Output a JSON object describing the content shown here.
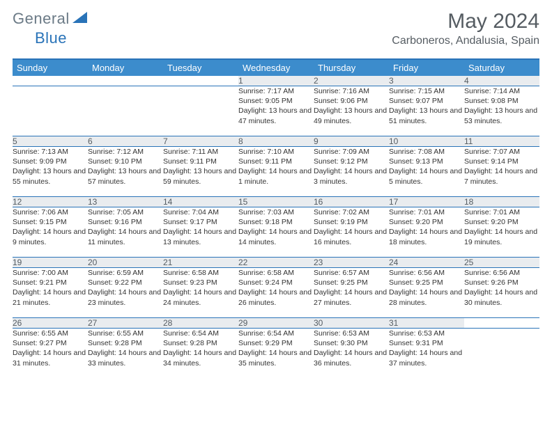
{
  "logo": {
    "general": "General",
    "blue": "Blue"
  },
  "title": "May 2024",
  "location": "Carboneros, Andalusia, Spain",
  "columns": [
    "Sunday",
    "Monday",
    "Tuesday",
    "Wednesday",
    "Thursday",
    "Friday",
    "Saturday"
  ],
  "colors": {
    "header_bg": "#3c8ccc",
    "border": "#2973b8",
    "daynum_bg": "#e9ecef",
    "text": "#333333",
    "title_text": "#555c62"
  },
  "weeks": [
    {
      "nums": [
        "",
        "",
        "",
        "1",
        "2",
        "3",
        "4"
      ],
      "cells": [
        "",
        "",
        "",
        "Sunrise: 7:17 AM\nSunset: 9:05 PM\nDaylight: 13 hours and 47 minutes.",
        "Sunrise: 7:16 AM\nSunset: 9:06 PM\nDaylight: 13 hours and 49 minutes.",
        "Sunrise: 7:15 AM\nSunset: 9:07 PM\nDaylight: 13 hours and 51 minutes.",
        "Sunrise: 7:14 AM\nSunset: 9:08 PM\nDaylight: 13 hours and 53 minutes."
      ]
    },
    {
      "nums": [
        "5",
        "6",
        "7",
        "8",
        "9",
        "10",
        "11"
      ],
      "cells": [
        "Sunrise: 7:13 AM\nSunset: 9:09 PM\nDaylight: 13 hours and 55 minutes.",
        "Sunrise: 7:12 AM\nSunset: 9:10 PM\nDaylight: 13 hours and 57 minutes.",
        "Sunrise: 7:11 AM\nSunset: 9:11 PM\nDaylight: 13 hours and 59 minutes.",
        "Sunrise: 7:10 AM\nSunset: 9:11 PM\nDaylight: 14 hours and 1 minute.",
        "Sunrise: 7:09 AM\nSunset: 9:12 PM\nDaylight: 14 hours and 3 minutes.",
        "Sunrise: 7:08 AM\nSunset: 9:13 PM\nDaylight: 14 hours and 5 minutes.",
        "Sunrise: 7:07 AM\nSunset: 9:14 PM\nDaylight: 14 hours and 7 minutes."
      ]
    },
    {
      "nums": [
        "12",
        "13",
        "14",
        "15",
        "16",
        "17",
        "18"
      ],
      "cells": [
        "Sunrise: 7:06 AM\nSunset: 9:15 PM\nDaylight: 14 hours and 9 minutes.",
        "Sunrise: 7:05 AM\nSunset: 9:16 PM\nDaylight: 14 hours and 11 minutes.",
        "Sunrise: 7:04 AM\nSunset: 9:17 PM\nDaylight: 14 hours and 13 minutes.",
        "Sunrise: 7:03 AM\nSunset: 9:18 PM\nDaylight: 14 hours and 14 minutes.",
        "Sunrise: 7:02 AM\nSunset: 9:19 PM\nDaylight: 14 hours and 16 minutes.",
        "Sunrise: 7:01 AM\nSunset: 9:20 PM\nDaylight: 14 hours and 18 minutes.",
        "Sunrise: 7:01 AM\nSunset: 9:20 PM\nDaylight: 14 hours and 19 minutes."
      ]
    },
    {
      "nums": [
        "19",
        "20",
        "21",
        "22",
        "23",
        "24",
        "25"
      ],
      "cells": [
        "Sunrise: 7:00 AM\nSunset: 9:21 PM\nDaylight: 14 hours and 21 minutes.",
        "Sunrise: 6:59 AM\nSunset: 9:22 PM\nDaylight: 14 hours and 23 minutes.",
        "Sunrise: 6:58 AM\nSunset: 9:23 PM\nDaylight: 14 hours and 24 minutes.",
        "Sunrise: 6:58 AM\nSunset: 9:24 PM\nDaylight: 14 hours and 26 minutes.",
        "Sunrise: 6:57 AM\nSunset: 9:25 PM\nDaylight: 14 hours and 27 minutes.",
        "Sunrise: 6:56 AM\nSunset: 9:25 PM\nDaylight: 14 hours and 28 minutes.",
        "Sunrise: 6:56 AM\nSunset: 9:26 PM\nDaylight: 14 hours and 30 minutes."
      ]
    },
    {
      "nums": [
        "26",
        "27",
        "28",
        "29",
        "30",
        "31",
        ""
      ],
      "cells": [
        "Sunrise: 6:55 AM\nSunset: 9:27 PM\nDaylight: 14 hours and 31 minutes.",
        "Sunrise: 6:55 AM\nSunset: 9:28 PM\nDaylight: 14 hours and 33 minutes.",
        "Sunrise: 6:54 AM\nSunset: 9:28 PM\nDaylight: 14 hours and 34 minutes.",
        "Sunrise: 6:54 AM\nSunset: 9:29 PM\nDaylight: 14 hours and 35 minutes.",
        "Sunrise: 6:53 AM\nSunset: 9:30 PM\nDaylight: 14 hours and 36 minutes.",
        "Sunrise: 6:53 AM\nSunset: 9:31 PM\nDaylight: 14 hours and 37 minutes.",
        ""
      ]
    }
  ]
}
